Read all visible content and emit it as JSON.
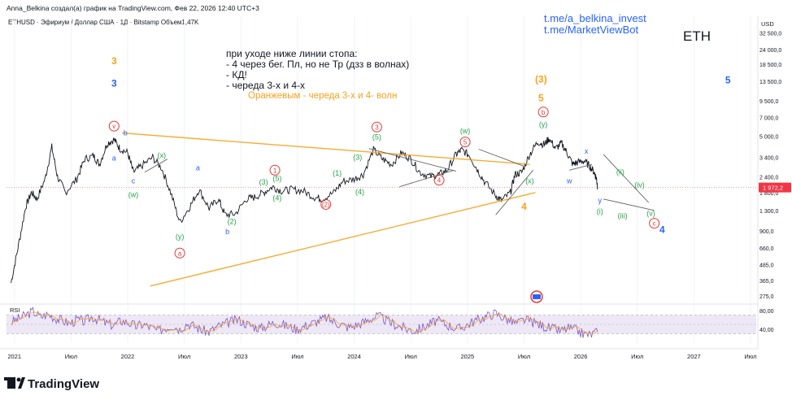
{
  "header": {
    "author_line": "Anna_Belkina создал(а) график на TradingView.com, Фев 22, 2026 12:40 UTC+3",
    "symbol_line": "ETHUSD · Эфириум / Доллар США · 1Д · Bitstamp  Объем1,47K"
  },
  "links": [
    "t.me/a_belkina_invest",
    "t.me/MarketViewBot"
  ],
  "ticker_label": "ETH",
  "note": {
    "lines": [
      "при уходе ниже линии стопа:",
      "- 4 через бег. Пл, но не Тр (дзз в волнах)",
      "- КД!",
      "- череда 3-х и 4-х"
    ],
    "orange_line": "Оранжевым - череда 3-х и 4- волн"
  },
  "brand": "TradingView",
  "colors": {
    "price": "#131722",
    "orange": "#f7a21b",
    "blue": "#2962ff",
    "green": "#22a447",
    "red": "#e53935",
    "axis_text": "#131722",
    "rsi_line": "#7e57c2",
    "rsi_ma": "#f7a21b",
    "rsi_band": "#ede7f6",
    "current_price_bg": "#f23645",
    "link": "#2962ff"
  },
  "chart_data": {
    "type": "line",
    "title": "ETHUSD · 1Д · Bitstamp",
    "yscale": "log",
    "ylim": [
      245,
      38000
    ],
    "x_axis": {
      "range": [
        2020.93,
        2027.55
      ],
      "ticks": [
        {
          "x": 2021.0,
          "label": "2021"
        },
        {
          "x": 2021.5,
          "label": "Июл"
        },
        {
          "x": 2022.0,
          "label": "2022"
        },
        {
          "x": 2022.5,
          "label": "Июл"
        },
        {
          "x": 2023.0,
          "label": "2023"
        },
        {
          "x": 2023.5,
          "label": "Июл"
        },
        {
          "x": 2024.0,
          "label": "2024"
        },
        {
          "x": 2024.5,
          "label": "Июл"
        },
        {
          "x": 2025.0,
          "label": "2025"
        },
        {
          "x": 2025.5,
          "label": "Июл"
        },
        {
          "x": 2026.0,
          "label": "2026"
        },
        {
          "x": 2026.5,
          "label": "Июл"
        },
        {
          "x": 2027.0,
          "label": "2027"
        },
        {
          "x": 2027.5,
          "label": "Июл"
        }
      ]
    },
    "y_axis": {
      "currency_label": "USD",
      "ticks": [
        {
          "v": 32500,
          "label": "32 500,0"
        },
        {
          "v": 24000,
          "label": "24 000,0"
        },
        {
          "v": 18500,
          "label": "18 500,0"
        },
        {
          "v": 13500,
          "label": "13 500,0"
        },
        {
          "v": 9500,
          "label": "9 500,0"
        },
        {
          "v": 7000,
          "label": "7 000,0"
        },
        {
          "v": 5000,
          "label": "5 000,0"
        },
        {
          "v": 3400,
          "label": "3 400,0"
        },
        {
          "v": 2400,
          "label": "2 400,0"
        },
        {
          "v": 1800,
          "label": "1 800,0"
        },
        {
          "v": 1300,
          "label": "1 300,0"
        },
        {
          "v": 900,
          "label": "900,0"
        },
        {
          "v": 660,
          "label": "660,0"
        },
        {
          "v": 485,
          "label": "485,0"
        },
        {
          "v": 365,
          "label": "365,0"
        },
        {
          "v": 275,
          "label": "275,0"
        }
      ]
    },
    "current_price": {
      "value": 1972.2,
      "label": "1 972,2"
    },
    "series": [
      {
        "name": "ETHUSD",
        "points": [
          [
            2020.97,
            350
          ],
          [
            2021.03,
            650
          ],
          [
            2021.1,
            1400
          ],
          [
            2021.15,
            1800
          ],
          [
            2021.2,
            1600
          ],
          [
            2021.27,
            2300
          ],
          [
            2021.33,
            4100
          ],
          [
            2021.38,
            2400
          ],
          [
            2021.45,
            1800
          ],
          [
            2021.55,
            2300
          ],
          [
            2021.62,
            3300
          ],
          [
            2021.7,
            3500
          ],
          [
            2021.75,
            3000
          ],
          [
            2021.82,
            4400
          ],
          [
            2021.88,
            4700
          ],
          [
            2021.93,
            4000
          ],
          [
            2022.0,
            3700
          ],
          [
            2022.05,
            2600
          ],
          [
            2022.12,
            2900
          ],
          [
            2022.22,
            3400
          ],
          [
            2022.3,
            2800
          ],
          [
            2022.38,
            1800
          ],
          [
            2022.46,
            1050
          ],
          [
            2022.55,
            1400
          ],
          [
            2022.63,
            1900
          ],
          [
            2022.72,
            1350
          ],
          [
            2022.8,
            1600
          ],
          [
            2022.86,
            1200
          ],
          [
            2022.95,
            1220
          ],
          [
            2023.05,
            1600
          ],
          [
            2023.12,
            1650
          ],
          [
            2023.2,
            1800
          ],
          [
            2023.28,
            2000
          ],
          [
            2023.36,
            1850
          ],
          [
            2023.45,
            1900
          ],
          [
            2023.55,
            1850
          ],
          [
            2023.65,
            1650
          ],
          [
            2023.72,
            1600
          ],
          [
            2023.82,
            1800
          ],
          [
            2023.9,
            2200
          ],
          [
            2024.0,
            2300
          ],
          [
            2024.08,
            2500
          ],
          [
            2024.17,
            3900
          ],
          [
            2024.25,
            3300
          ],
          [
            2024.33,
            3000
          ],
          [
            2024.42,
            3700
          ],
          [
            2024.5,
            3300
          ],
          [
            2024.58,
            2600
          ],
          [
            2024.67,
            2400
          ],
          [
            2024.75,
            2500
          ],
          [
            2024.82,
            2700
          ],
          [
            2024.9,
            3600
          ],
          [
            2024.95,
            3900
          ],
          [
            2025.02,
            3500
          ],
          [
            2025.08,
            2800
          ],
          [
            2025.15,
            2200
          ],
          [
            2025.25,
            1700
          ],
          [
            2025.3,
            1550
          ],
          [
            2025.38,
            1800
          ],
          [
            2025.42,
            2500
          ],
          [
            2025.48,
            2600
          ],
          [
            2025.55,
            3600
          ],
          [
            2025.62,
            4500
          ],
          [
            2025.68,
            4300
          ],
          [
            2025.72,
            4800
          ],
          [
            2025.78,
            4000
          ],
          [
            2025.83,
            4400
          ],
          [
            2025.88,
            3700
          ],
          [
            2025.93,
            3000
          ],
          [
            2025.97,
            3100
          ],
          [
            2026.03,
            3200
          ],
          [
            2026.08,
            2900
          ],
          [
            2026.12,
            2600
          ],
          [
            2026.14,
            2300
          ],
          [
            2026.15,
            1972.2
          ]
        ]
      },
      {
        "name": "RSI",
        "ylim": [
          10,
          90
        ],
        "band": [
          30,
          70
        ],
        "ticks": [
          {
            "v": 80,
            "label": "80,00"
          },
          {
            "v": 40,
            "label": "40,00"
          }
        ],
        "label": "RSI",
        "values": [
          55,
          62,
          70,
          78,
          66,
          72,
          64,
          58,
          52,
          60,
          56,
          66,
          60,
          52,
          48,
          58,
          54,
          46,
          50,
          44,
          36,
          42,
          48,
          40,
          52,
          46,
          38,
          34,
          44,
          50,
          56,
          60,
          52,
          46,
          42,
          48,
          54,
          50,
          44,
          40,
          46,
          52,
          58,
          64,
          56,
          50,
          44,
          48,
          54,
          62,
          68,
          60,
          52,
          46,
          40,
          36,
          42,
          50,
          58,
          52,
          46,
          40,
          48,
          56,
          62,
          68,
          74,
          66,
          58,
          52,
          60,
          56,
          50,
          44,
          40,
          36,
          42,
          38,
          30,
          28,
          34
        ]
      }
    ],
    "annotations": {
      "waves": [
        {
          "text": "3",
          "x": 2021.88,
          "v": 19500,
          "color": "orange"
        },
        {
          "text": "3",
          "x": 2021.88,
          "v": 13000,
          "color": "blue"
        },
        {
          "text": "v",
          "x": 2021.88,
          "v": 6000,
          "color": "red",
          "circle": true
        },
        {
          "text": "b",
          "x": 2021.98,
          "v": 5400,
          "color": "blue"
        },
        {
          "text": "a",
          "x": 2021.88,
          "v": 3400,
          "color": "blue"
        },
        {
          "text": "(x)",
          "x": 2022.3,
          "v": 3600,
          "color": "green"
        },
        {
          "text": "a",
          "x": 2022.62,
          "v": 2850,
          "color": "blue"
        },
        {
          "text": "c",
          "x": 2022.05,
          "v": 2250,
          "color": "blue"
        },
        {
          "text": "(w)",
          "x": 2022.05,
          "v": 1750,
          "color": "green"
        },
        {
          "text": "(2)",
          "x": 2022.92,
          "v": 1080,
          "color": "green"
        },
        {
          "text": "b",
          "x": 2022.88,
          "v": 900,
          "color": "blue"
        },
        {
          "text": "(y)",
          "x": 2022.46,
          "v": 820,
          "color": "green"
        },
        {
          "text": "a",
          "x": 2022.46,
          "v": 600,
          "color": "red",
          "circle": true
        },
        {
          "text": "1",
          "x": 2023.3,
          "v": 2700,
          "color": "red",
          "circle": true
        },
        {
          "text": "(3)",
          "x": 2023.2,
          "v": 2200,
          "color": "green"
        },
        {
          "text": "(5)",
          "x": 2023.32,
          "v": 2350,
          "color": "green"
        },
        {
          "text": "(4)",
          "x": 2023.32,
          "v": 1650,
          "color": "green"
        },
        {
          "text": "(1)",
          "x": 2023.85,
          "v": 2600,
          "color": "green"
        },
        {
          "text": "(2)",
          "x": 2023.75,
          "v": 1450,
          "color": "red",
          "circle": true
        },
        {
          "text": "(3)",
          "x": 2024.03,
          "v": 3450,
          "color": "green"
        },
        {
          "text": "(4)",
          "x": 2024.05,
          "v": 1850,
          "color": "green"
        },
        {
          "text": "3",
          "x": 2024.2,
          "v": 5900,
          "color": "red",
          "circle": true
        },
        {
          "text": "(5)",
          "x": 2024.2,
          "v": 5000,
          "color": "green"
        },
        {
          "text": "4",
          "x": 2024.75,
          "v": 2250,
          "color": "red",
          "circle": true
        },
        {
          "text": "(w)",
          "x": 2024.98,
          "v": 5600,
          "color": "green"
        },
        {
          "text": "5",
          "x": 2024.98,
          "v": 4500,
          "color": "red",
          "circle": true
        },
        {
          "text": "4",
          "x": 2025.5,
          "v": 1400,
          "color": "orange"
        },
        {
          "text": "(x)",
          "x": 2025.55,
          "v": 2250,
          "color": "green"
        },
        {
          "text": "(3)",
          "x": 2025.65,
          "v": 14000,
          "color": "orange"
        },
        {
          "text": "5",
          "x": 2025.65,
          "v": 10000,
          "color": "orange"
        },
        {
          "text": "b",
          "x": 2025.67,
          "v": 7750,
          "color": "red",
          "circle": true
        },
        {
          "text": "(y)",
          "x": 2025.67,
          "v": 6300,
          "color": "green"
        },
        {
          "text": "x",
          "x": 2026.05,
          "v": 3850,
          "color": "blue"
        },
        {
          "text": "w",
          "x": 2025.9,
          "v": 2250,
          "color": "blue"
        },
        {
          "text": "y",
          "x": 2026.17,
          "v": 1580,
          "color": "blue"
        },
        {
          "text": "(i)",
          "x": 2026.17,
          "v": 1300,
          "color": "green"
        },
        {
          "text": "(ii)",
          "x": 2026.35,
          "v": 2650,
          "color": "green"
        },
        {
          "text": "(iii)",
          "x": 2026.37,
          "v": 1200,
          "color": "green"
        },
        {
          "text": "(iv)",
          "x": 2026.52,
          "v": 2100,
          "color": "green"
        },
        {
          "text": "(v)",
          "x": 2026.62,
          "v": 1250,
          "color": "green"
        },
        {
          "text": "c",
          "x": 2026.65,
          "v": 1030,
          "color": "red",
          "circle": true
        },
        {
          "text": "4",
          "x": 2026.72,
          "v": 920,
          "color": "blue"
        },
        {
          "text": "5",
          "x": 2027.3,
          "v": 13800,
          "color": "blue"
        }
      ],
      "lines": [
        {
          "from": [
            2021.95,
            5300
          ],
          "to": [
            2025.55,
            3000
          ],
          "color": "orange"
        },
        {
          "from": [
            2022.2,
            330
          ],
          "to": [
            2025.6,
            1800
          ],
          "color": "orange"
        },
        {
          "from": [
            2024.13,
            4000
          ],
          "to": [
            2024.9,
            2650
          ],
          "color": "gray"
        },
        {
          "from": [
            2024.4,
            2000
          ],
          "to": [
            2024.88,
            2700
          ],
          "color": "gray"
        },
        {
          "from": [
            2025.1,
            3950
          ],
          "to": [
            2025.5,
            2900
          ],
          "color": "gray"
        },
        {
          "from": [
            2025.25,
            1200
          ],
          "to": [
            2025.58,
            2700
          ],
          "color": "gray"
        },
        {
          "from": [
            2022.15,
            2600
          ],
          "to": [
            2022.35,
            3300
          ],
          "color": "gray"
        },
        {
          "from": [
            2025.9,
            2700
          ],
          "to": [
            2026.1,
            3000
          ],
          "color": "gray"
        },
        {
          "from": [
            2026.2,
            1600
          ],
          "to": [
            2026.65,
            1300
          ],
          "color": "gray"
        },
        {
          "from": [
            2026.2,
            3600
          ],
          "to": [
            2026.6,
            1500
          ],
          "color": "gray"
        }
      ]
    }
  }
}
